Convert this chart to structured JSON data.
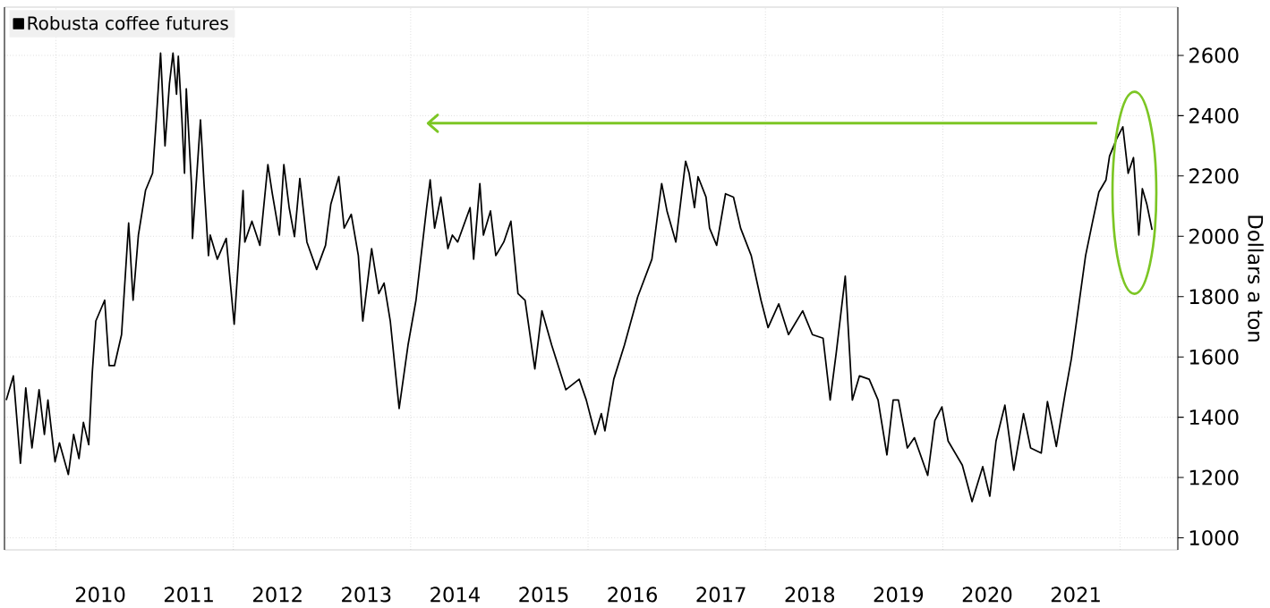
{
  "chart_data": {
    "type": "line",
    "ylabel": "Dollars a ton",
    "legend": "top left",
    "grid": true,
    "line_style": "solid",
    "xlim": [
      2009.42,
      2022.65
    ],
    "ylim": [
      960,
      2760
    ],
    "xticks": [
      {
        "value": 2010.5,
        "label": "2010"
      },
      {
        "value": 2011.5,
        "label": "2011"
      },
      {
        "value": 2012.5,
        "label": "2012"
      },
      {
        "value": 2013.5,
        "label": "2013"
      },
      {
        "value": 2014.5,
        "label": "2014"
      },
      {
        "value": 2015.5,
        "label": "2015"
      },
      {
        "value": 2016.5,
        "label": "2016"
      },
      {
        "value": 2017.5,
        "label": "2017"
      },
      {
        "value": 2018.5,
        "label": "2018"
      },
      {
        "value": 2019.5,
        "label": "2019"
      },
      {
        "value": 2020.5,
        "label": "2020"
      },
      {
        "value": 2021.5,
        "label": "2021"
      },
      {
        "value": 2010,
        "label": null
      },
      {
        "value": 2012,
        "label": null
      },
      {
        "value": 2014,
        "label": null
      },
      {
        "value": 2016,
        "label": null
      },
      {
        "value": 2018,
        "label": null
      },
      {
        "value": 2020,
        "label": null
      },
      {
        "value": 2022,
        "label": null
      }
    ],
    "yticks": [
      1000,
      1200,
      1400,
      1600,
      1800,
      2000,
      2200,
      2400,
      2600
    ],
    "series": [
      {
        "name": "Robusta coffee futures",
        "color": "#000000",
        "x": [
          2009.44,
          2009.52,
          2009.6,
          2009.66,
          2009.73,
          2009.81,
          2009.87,
          2009.91,
          2009.99,
          2010.04,
          2010.14,
          2010.2,
          2010.26,
          2010.31,
          2010.37,
          2010.41,
          2010.45,
          2010.55,
          2010.6,
          2010.66,
          2010.74,
          2010.82,
          2010.87,
          2010.93,
          2011.01,
          2011.09,
          2011.13,
          2011.18,
          2011.23,
          2011.28,
          2011.32,
          2011.36,
          2011.38,
          2011.42,
          2011.45,
          2011.47,
          2011.53,
          2011.54,
          2011.63,
          2011.67,
          2011.72,
          2011.74,
          2011.82,
          2011.92,
          2012.01,
          2012.11,
          2012.13,
          2012.21,
          2012.3,
          2012.39,
          2012.44,
          2012.52,
          2012.57,
          2012.63,
          2012.69,
          2012.75,
          2012.83,
          2012.94,
          2013.04,
          2013.1,
          2013.19,
          2013.25,
          2013.33,
          2013.41,
          2013.46,
          2013.56,
          2013.64,
          2013.7,
          2013.77,
          2013.87,
          2013.97,
          2014.06,
          2014.18,
          2014.22,
          2014.27,
          2014.34,
          2014.42,
          2014.47,
          2014.53,
          2014.67,
          2014.71,
          2014.78,
          2014.82,
          2014.9,
          2014.96,
          2015.05,
          2015.13,
          2015.21,
          2015.29,
          2015.4,
          2015.48,
          2015.59,
          2015.75,
          2015.9,
          2015.98,
          2016.08,
          2016.15,
          2016.19,
          2016.29,
          2016.41,
          2016.56,
          2016.72,
          2016.83,
          2016.89,
          2016.99,
          2017.1,
          2017.14,
          2017.2,
          2017.24,
          2017.33,
          2017.37,
          2017.45,
          2017.55,
          2017.64,
          2017.72,
          2017.84,
          2017.95,
          2018.03,
          2018.15,
          2018.26,
          2018.42,
          2018.53,
          2018.65,
          2018.73,
          2018.8,
          2018.9,
          2018.98,
          2019.06,
          2019.17,
          2019.27,
          2019.37,
          2019.44,
          2019.5,
          2019.6,
          2019.68,
          2019.83,
          2019.91,
          2019.99,
          2020.06,
          2020.22,
          2020.33,
          2020.45,
          2020.53,
          2020.6,
          2020.7,
          2020.8,
          2020.91,
          2020.99,
          2021.11,
          2021.18,
          2021.28,
          2021.38,
          2021.45,
          2021.61,
          2021.69,
          2021.76,
          2021.84,
          2021.88,
          2021.96,
          2022.03,
          2022.09,
          2022.15,
          2022.21,
          2022.25,
          2022.3,
          2022.36
        ],
        "values": [
          1457,
          1537,
          1247,
          1497,
          1298,
          1491,
          1343,
          1457,
          1252,
          1315,
          1210,
          1343,
          1263,
          1383,
          1309,
          1548,
          1719,
          1788,
          1571,
          1571,
          1674,
          2044,
          1788,
          2004,
          2152,
          2209,
          2380,
          2608,
          2300,
          2506,
          2608,
          2471,
          2597,
          2392,
          2209,
          2489,
          2164,
          1993,
          2386,
          2175,
          1936,
          2004,
          1924,
          1993,
          1708,
          2152,
          1981,
          2050,
          1970,
          2238,
          2141,
          2004,
          2238,
          2095,
          1999,
          2192,
          1981,
          1890,
          1970,
          2107,
          2198,
          2027,
          2073,
          1936,
          1719,
          1959,
          1810,
          1845,
          1719,
          1429,
          1639,
          1788,
          2095,
          2187,
          2027,
          2130,
          1959,
          2004,
          1981,
          2095,
          1924,
          2175,
          2004,
          2084,
          1936,
          1981,
          2050,
          1810,
          1788,
          1560,
          1753,
          1639,
          1491,
          1526,
          1457,
          1343,
          1412,
          1355,
          1526,
          1639,
          1799,
          1924,
          2175,
          2084,
          1981,
          2249,
          2209,
          2095,
          2198,
          2130,
          2027,
          1970,
          2141,
          2130,
          2027,
          1936,
          1788,
          1697,
          1776,
          1674,
          1753,
          1674,
          1662,
          1457,
          1617,
          1868,
          1457,
          1537,
          1526,
          1457,
          1275,
          1457,
          1457,
          1298,
          1332,
          1207,
          1389,
          1434,
          1321,
          1241,
          1120,
          1236,
          1138,
          1321,
          1440,
          1224,
          1412,
          1298,
          1281,
          1452,
          1303,
          1480,
          1594,
          1936,
          2050,
          2147,
          2187,
          2266,
          2323,
          2363,
          2209,
          2261,
          2004,
          2158,
          2107,
          2021
        ]
      },
      {
        "type": "line",
        "color": "#7cc624",
        "x": [
          2021.74,
          2014.21
        ],
        "values": [
          2375,
          2375
        ]
      }
    ]
  }
}
